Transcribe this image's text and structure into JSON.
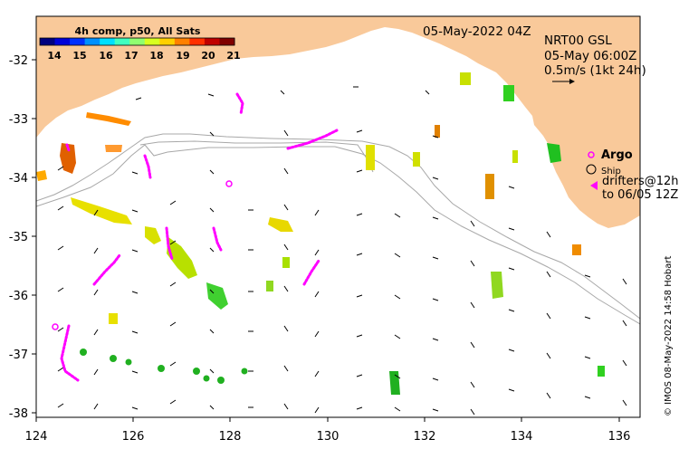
{
  "map": {
    "date_label": "05-May-2022 04Z",
    "product_label": "NRT00 GSL",
    "time_label": "05-May 06:00Z",
    "scale_label": "0.5m/s (1kt 24h)",
    "credit": "© IMOS 08-May-2022 14:58 Hobart"
  },
  "colorbar": {
    "title": "4h comp, p50, All Sats",
    "ticks": [
      "14",
      "15",
      "16",
      "17",
      "18",
      "19",
      "20",
      "21"
    ],
    "colors": [
      "#00007f",
      "#0000d8",
      "#0030ff",
      "#0090ff",
      "#00e0ff",
      "#40ffc0",
      "#90ff70",
      "#d8ff20",
      "#ffd000",
      "#ff8000",
      "#ff3000",
      "#c00000",
      "#800000"
    ]
  },
  "axes": {
    "x_ticks": [
      "124",
      "126",
      "128",
      "130",
      "132",
      "134",
      "136"
    ],
    "y_ticks": [
      "-32",
      "-33",
      "-34",
      "-35",
      "-36",
      "-37",
      "-38"
    ]
  },
  "legend": {
    "argo": "Argo",
    "ship": "Ship",
    "drifters": "drifters@12h",
    "drifters_to": "to 06/05 12Z"
  },
  "colors": {
    "land": "#f9c99a",
    "sst_warm": "#ff8c00",
    "sst_yellow": "#f0e000",
    "sst_green": "#30d020",
    "drifter": "#ff00ff",
    "contour": "#a8a8a8"
  }
}
